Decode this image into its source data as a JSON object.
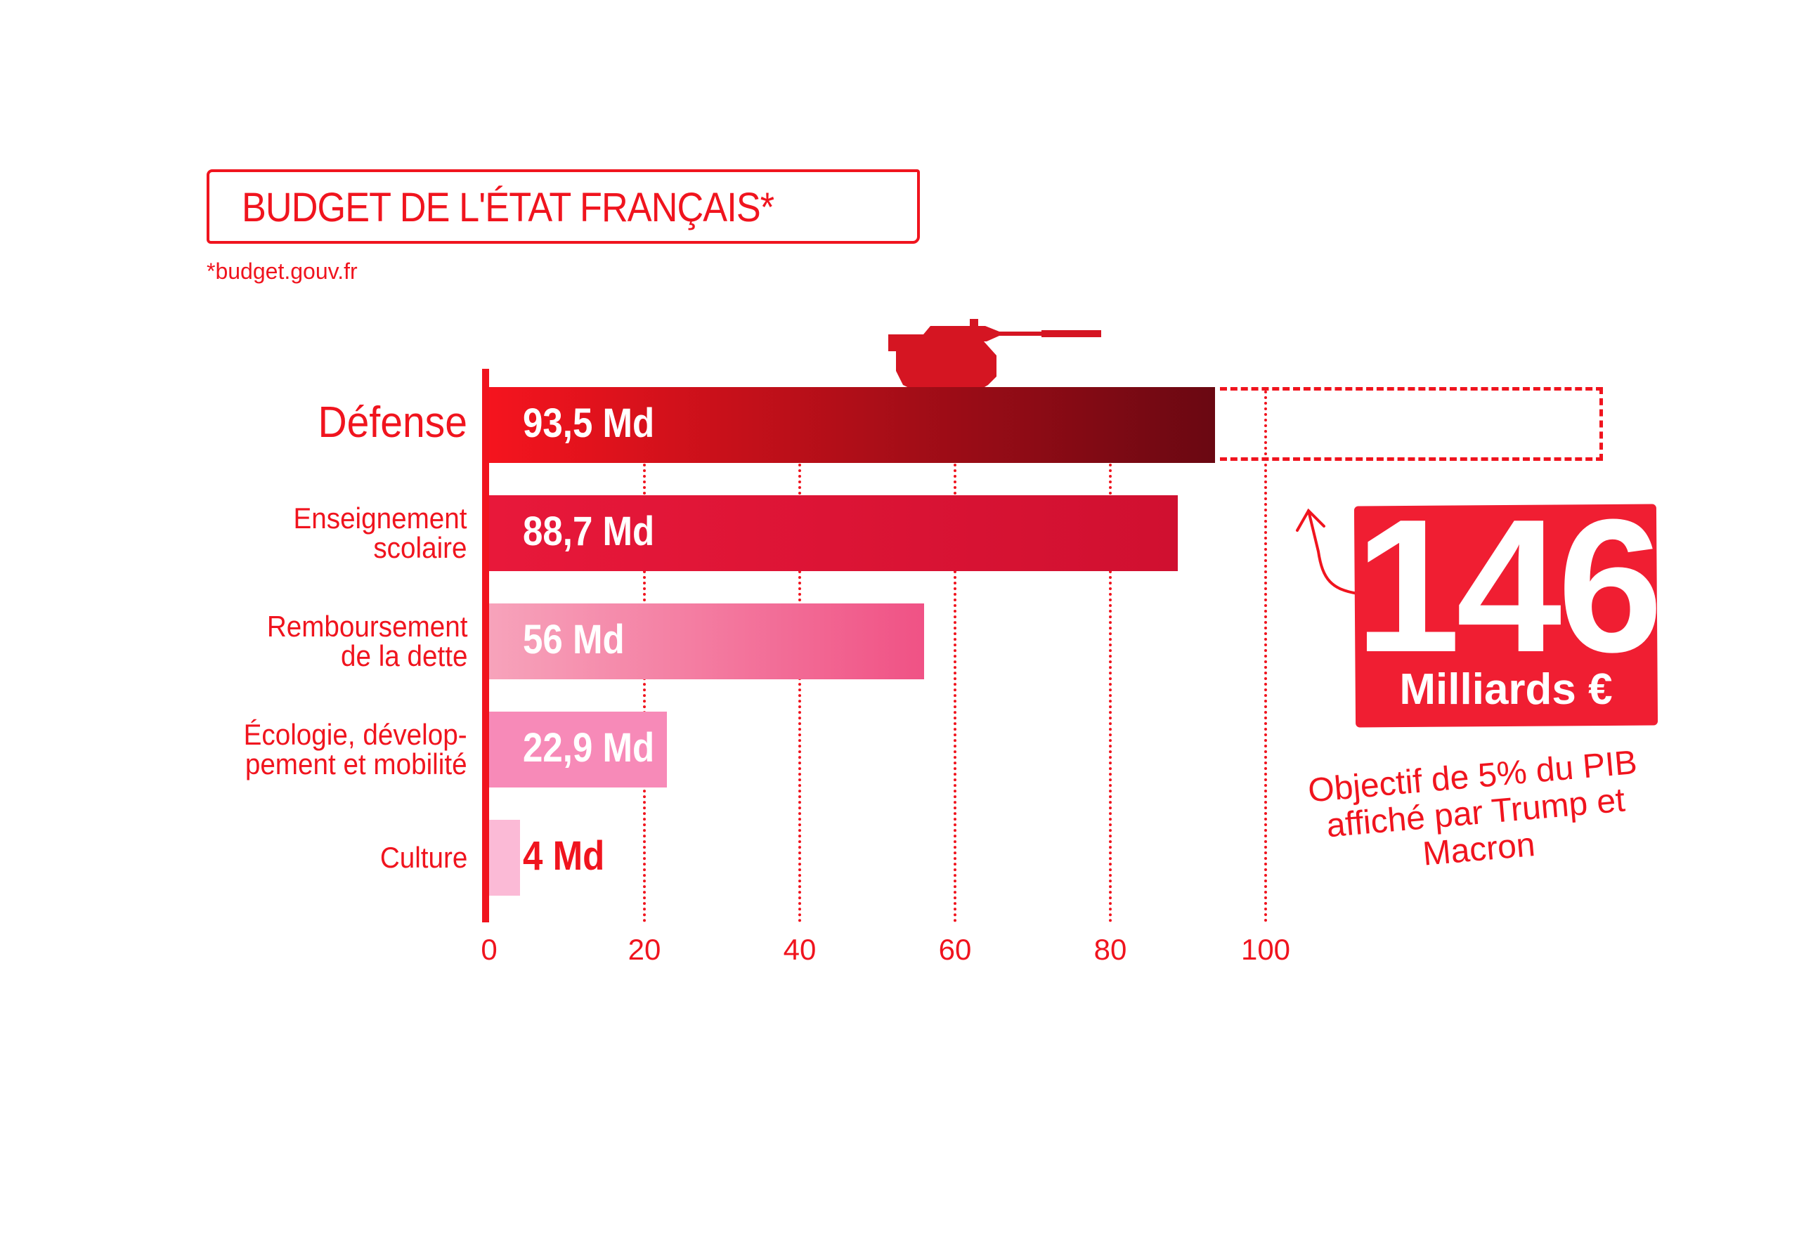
{
  "title": "BUDGET DE L'ÉTAT FRANÇAIS*",
  "source": "*budget.gouv.fr",
  "chart_data": {
    "type": "bar",
    "orientation": "horizontal",
    "categories": [
      "Défense",
      "Enseignement scolaire",
      "Remboursement de la dette",
      "Écologie, dévelop-pement et mobilité",
      "Culture"
    ],
    "category_lines": [
      [
        "Défense"
      ],
      [
        "Enseignement",
        "scolaire"
      ],
      [
        "Remboursement",
        "de la dette"
      ],
      [
        "Écologie, dévelop-",
        "pement et mobilité"
      ],
      [
        "Culture"
      ]
    ],
    "values": [
      93.5,
      88.7,
      56,
      22.9,
      4
    ],
    "data_labels": [
      "93,5 Md",
      "88,7 Md",
      "56 Md",
      "22,9 Md",
      "4 Md"
    ],
    "xlim": [
      0,
      100
    ],
    "xticks": [
      "0",
      "20",
      "40",
      "60",
      "80",
      "100"
    ],
    "grid": "vertical dotted",
    "colors": [
      [
        "#f5141e",
        "#6a0812"
      ],
      [
        "#e8183a",
        "#d01030"
      ],
      [
        "#f7a3bb",
        "#f05285"
      ],
      [
        "#f78ab8",
        "#f78ab8"
      ],
      [
        "#fbbad6",
        "#fbbad6"
      ]
    ],
    "target": {
      "value": 146,
      "label": "146",
      "unit": "Milliards €",
      "note": "Objectif de 5% du PIB affiché par Trump et Macron"
    }
  },
  "accent": "#f0141e"
}
